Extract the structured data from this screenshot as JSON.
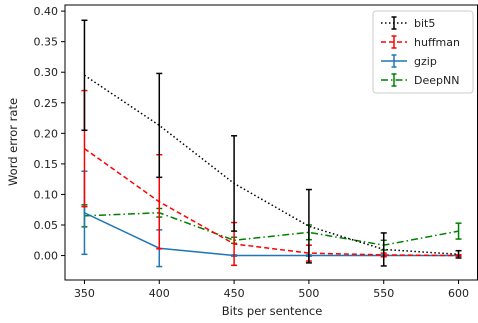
{
  "chart_data": {
    "type": "line",
    "title": "",
    "xlabel": "Bits per sentence",
    "ylabel": "Word error rate",
    "x": [
      350,
      400,
      450,
      500,
      550,
      600
    ],
    "xlim": [
      337,
      613
    ],
    "ylim": [
      -0.04,
      0.41
    ],
    "xticks": [
      350,
      400,
      450,
      500,
      550,
      600
    ],
    "yticks": [
      0.0,
      0.05,
      0.1,
      0.15,
      0.2,
      0.25,
      0.3,
      0.35,
      0.4
    ],
    "ytick_labels": [
      "0.00",
      "0.05",
      "0.10",
      "0.15",
      "0.20",
      "0.25",
      "0.30",
      "0.35",
      "0.40"
    ],
    "grid": false,
    "legend_position": "top-right",
    "series": [
      {
        "name": "bit5",
        "color": "#000000",
        "line_style": "dotted",
        "values": [
          0.295,
          0.213,
          0.118,
          0.048,
          0.01,
          0.002
        ],
        "errors": [
          0.09,
          0.085,
          0.078,
          0.06,
          0.027,
          0.006
        ]
      },
      {
        "name": "huffman",
        "color": "#ff0000",
        "line_style": "dashed",
        "values": [
          0.175,
          0.088,
          0.019,
          0.004,
          0.001,
          0.0
        ],
        "errors": [
          0.095,
          0.077,
          0.035,
          0.013,
          0.003,
          0.001
        ]
      },
      {
        "name": "gzip",
        "color": "#1f77b4",
        "line_style": "solid",
        "values": [
          0.07,
          0.012,
          0.0,
          0.0,
          0.0,
          0.0
        ],
        "errors": [
          0.068,
          0.03,
          0.001,
          0.001,
          0.001,
          0.001
        ]
      },
      {
        "name": "DeepNN",
        "color": "#008000",
        "line_style": "dashdot",
        "values": [
          0.065,
          0.07,
          0.025,
          0.038,
          0.017,
          0.04
        ],
        "errors": [
          0.018,
          0.007,
          0.005,
          0.012,
          0.008,
          0.013
        ]
      }
    ]
  }
}
